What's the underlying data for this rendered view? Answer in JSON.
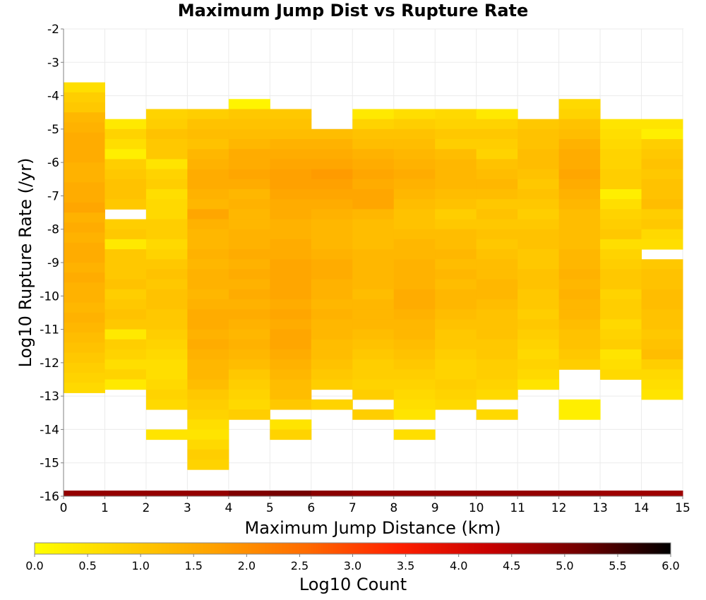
{
  "chart_data": {
    "type": "heatmap",
    "title": "Maximum Jump Dist vs Rupture Rate",
    "xlabel": "Maximum Jump Distance (km)",
    "ylabel": "Log10 Rupture Rate (/yr)",
    "xlim": [
      0,
      15
    ],
    "ylim": [
      -16,
      -2
    ],
    "x_ticks": [
      "0",
      "1",
      "2",
      "3",
      "4",
      "5",
      "6",
      "7",
      "8",
      "9",
      "10",
      "11",
      "12",
      "13",
      "14",
      "15"
    ],
    "y_ticks": [
      "-2",
      "-3",
      "-4",
      "-5",
      "-6",
      "-7",
      "-8",
      "-9",
      "-10",
      "-11",
      "-12",
      "-13",
      "-14",
      "-15",
      "-16"
    ],
    "colorbar": {
      "label": "Log10 Count",
      "range": [
        0,
        6
      ],
      "ticks": [
        "0.0",
        "0.5",
        "1.0",
        "1.5",
        "2.0",
        "2.5",
        "3.0",
        "3.5",
        "4.0",
        "4.5",
        "5.0",
        "5.5",
        "6.0"
      ],
      "colors": [
        "#ffff00",
        "#ffd000",
        "#ffa000",
        "#ff6a00",
        "#ff2000",
        "#c80000",
        "#720000",
        "#000000"
      ]
    },
    "x_bin_width": 1,
    "y_bin_height": 0.3,
    "columns": [
      {
        "x": 0,
        "y_max": -3.6,
        "values": [
          0.6,
          0.9,
          1.0,
          1.3,
          1.4,
          1.5,
          1.5,
          1.5,
          1.4,
          1.4,
          1.5,
          1.5,
          1.6,
          1.4,
          1.5,
          1.4,
          1.5,
          1.5,
          1.4,
          1.5,
          1.4,
          1.4,
          1.3,
          1.4,
          1.3,
          1.2,
          1.1,
          1.0,
          0.9,
          0.8,
          0.7
        ]
      },
      {
        "x": 1,
        "y_max": -4.7,
        "values": [
          0.4,
          0.8,
          0.6,
          0.3,
          0.9,
          1.0,
          1.1,
          1.1,
          1.0,
          null,
          0.9,
          1.0,
          0.4,
          1.0,
          1.0,
          1.0,
          1.1,
          0.9,
          1.0,
          1.1,
          1.0,
          0.4,
          0.9,
          0.8,
          0.6,
          0.8,
          0.4
        ]
      },
      {
        "x": 2,
        "y_max": -4.4,
        "values": [
          0.8,
          0.9,
          1.1,
          1.0,
          1.0,
          0.5,
          0.8,
          0.9,
          0.6,
          0.7,
          0.7,
          0.9,
          0.9,
          0.7,
          0.8,
          1.0,
          1.1,
          1.0,
          1.1,
          1.1,
          1.0,
          1.0,
          0.9,
          0.8,
          0.7,
          0.6,
          0.6,
          0.7,
          0.8,
          0.7,
          null,
          null,
          0.5
        ]
      },
      {
        "x": 3,
        "y_max": -4.4,
        "values": [
          0.9,
          1.1,
          1.2,
          1.1,
          1.3,
          1.4,
          1.5,
          1.5,
          1.4,
          1.3,
          1.6,
          1.4,
          1.3,
          1.3,
          1.4,
          1.3,
          1.4,
          1.4,
          1.3,
          1.4,
          1.5,
          1.5,
          1.4,
          1.5,
          1.4,
          1.3,
          1.3,
          1.2,
          1.0,
          0.9,
          0.8,
          0.6,
          0.5,
          0.7,
          0.9,
          0.8
        ]
      },
      {
        "x": 4,
        "y_max": -4.1,
        "values": [
          0.2,
          1.0,
          1.1,
          1.2,
          1.3,
          1.5,
          1.5,
          1.6,
          1.5,
          1.3,
          1.4,
          1.3,
          1.3,
          1.4,
          1.4,
          1.5,
          1.4,
          1.5,
          1.4,
          1.5,
          1.4,
          1.5,
          1.4,
          1.3,
          1.4,
          1.3,
          1.2,
          1.0,
          0.9,
          0.8,
          0.7,
          0.9
        ]
      },
      {
        "x": 5,
        "y_max": -4.4,
        "values": [
          1.0,
          1.1,
          1.2,
          1.4,
          1.5,
          1.6,
          1.7,
          1.7,
          1.6,
          1.5,
          1.5,
          1.4,
          1.4,
          1.5,
          1.5,
          1.6,
          1.6,
          1.6,
          1.6,
          1.5,
          1.6,
          1.5,
          1.6,
          1.6,
          1.5,
          1.4,
          1.3,
          1.2,
          1.2,
          1.0,
          null,
          0.5,
          0.8
        ]
      },
      {
        "x": 6,
        "y_max": -5.0,
        "values": [
          1.2,
          1.4,
          1.5,
          1.6,
          1.8,
          1.7,
          1.6,
          1.5,
          1.4,
          1.3,
          1.3,
          1.3,
          1.4,
          1.5,
          1.5,
          1.4,
          1.4,
          1.3,
          1.4,
          1.3,
          1.3,
          1.2,
          1.2,
          1.1,
          1.0,
          0.9,
          null,
          0.8
        ]
      },
      {
        "x": 7,
        "y_max": -4.4,
        "values": [
          0.4,
          0.8,
          1.1,
          1.2,
          1.4,
          1.5,
          1.6,
          1.5,
          1.6,
          1.6,
          1.3,
          1.2,
          1.2,
          1.2,
          1.3,
          1.3,
          1.3,
          1.3,
          1.2,
          1.3,
          1.3,
          1.3,
          1.2,
          1.1,
          1.0,
          0.9,
          0.9,
          0.8,
          0.9,
          null,
          0.9
        ]
      },
      {
        "x": 8,
        "y_max": -4.4,
        "values": [
          0.6,
          0.9,
          1.1,
          1.2,
          1.3,
          1.4,
          1.5,
          1.4,
          1.3,
          1.2,
          1.1,
          1.1,
          1.2,
          1.3,
          1.3,
          1.4,
          1.4,
          1.4,
          1.5,
          1.5,
          1.4,
          1.3,
          1.3,
          1.2,
          1.1,
          1.0,
          0.9,
          0.8,
          0.7,
          0.6,
          0.5,
          null,
          0.6
        ]
      },
      {
        "x": 9,
        "y_max": -4.4,
        "values": [
          0.7,
          0.8,
          1.0,
          0.9,
          1.2,
          1.3,
          1.3,
          1.3,
          1.2,
          1.1,
          0.9,
          1.0,
          1.2,
          1.2,
          1.3,
          1.2,
          1.3,
          1.2,
          1.3,
          1.3,
          1.2,
          1.1,
          1.0,
          1.0,
          0.9,
          0.8,
          0.8,
          0.9,
          0.8,
          0.7
        ]
      },
      {
        "x": 10,
        "y_max": -4.4,
        "values": [
          0.4,
          0.8,
          1.0,
          0.9,
          0.8,
          1.1,
          1.2,
          1.3,
          1.2,
          1.0,
          1.1,
          1.0,
          1.1,
          1.0,
          1.1,
          1.2,
          1.2,
          1.3,
          1.3,
          1.2,
          1.1,
          1.1,
          1.1,
          1.0,
          1.0,
          0.9,
          0.9,
          0.8,
          0.7,
          null,
          0.7
        ]
      },
      {
        "x": 11,
        "y_max": -4.7,
        "values": [
          1.0,
          1.1,
          1.1,
          1.2,
          1.2,
          1.1,
          1.0,
          1.1,
          1.0,
          0.9,
          1.0,
          1.1,
          1.1,
          1.0,
          1.0,
          1.1,
          1.1,
          1.0,
          1.0,
          0.9,
          1.0,
          0.9,
          0.8,
          0.7,
          0.8,
          0.7,
          0.5
        ]
      },
      {
        "x": 12,
        "y_max": -4.1,
        "values": [
          0.7,
          0.8,
          1.1,
          1.2,
          1.4,
          1.5,
          1.5,
          1.6,
          1.5,
          1.4,
          1.3,
          1.2,
          1.2,
          1.2,
          1.2,
          1.3,
          1.3,
          1.4,
          1.3,
          1.4,
          1.3,
          1.3,
          1.2,
          1.1,
          1.1,
          1.0,
          0.9,
          null,
          null,
          null,
          0.3,
          0.3
        ]
      },
      {
        "x": 13,
        "y_max": -4.7,
        "values": [
          0.5,
          0.6,
          0.7,
          0.8,
          0.8,
          0.9,
          0.9,
          0.3,
          0.6,
          0.8,
          0.9,
          1.0,
          0.6,
          0.8,
          0.9,
          1.0,
          1.0,
          0.8,
          0.9,
          0.9,
          0.7,
          0.8,
          0.9,
          0.5,
          0.6,
          0.7
        ]
      },
      {
        "x": 14,
        "y_max": -4.7,
        "values": [
          0.5,
          0.3,
          0.9,
          1.0,
          1.1,
          1.0,
          1.1,
          1.1,
          1.2,
          0.9,
          1.0,
          0.7,
          0.6,
          null,
          1.0,
          1.1,
          1.1,
          1.2,
          1.2,
          1.1,
          1.1,
          1.0,
          1.1,
          1.2,
          0.9,
          0.7,
          0.6,
          0.5
        ]
      }
    ],
    "bottom_row": {
      "y": -16,
      "values": [
        4.8,
        4.8,
        4.8,
        4.8,
        5.0,
        5.1,
        4.9,
        4.8,
        4.8,
        4.8,
        4.8,
        4.8,
        4.8,
        4.7,
        4.7
      ]
    }
  }
}
